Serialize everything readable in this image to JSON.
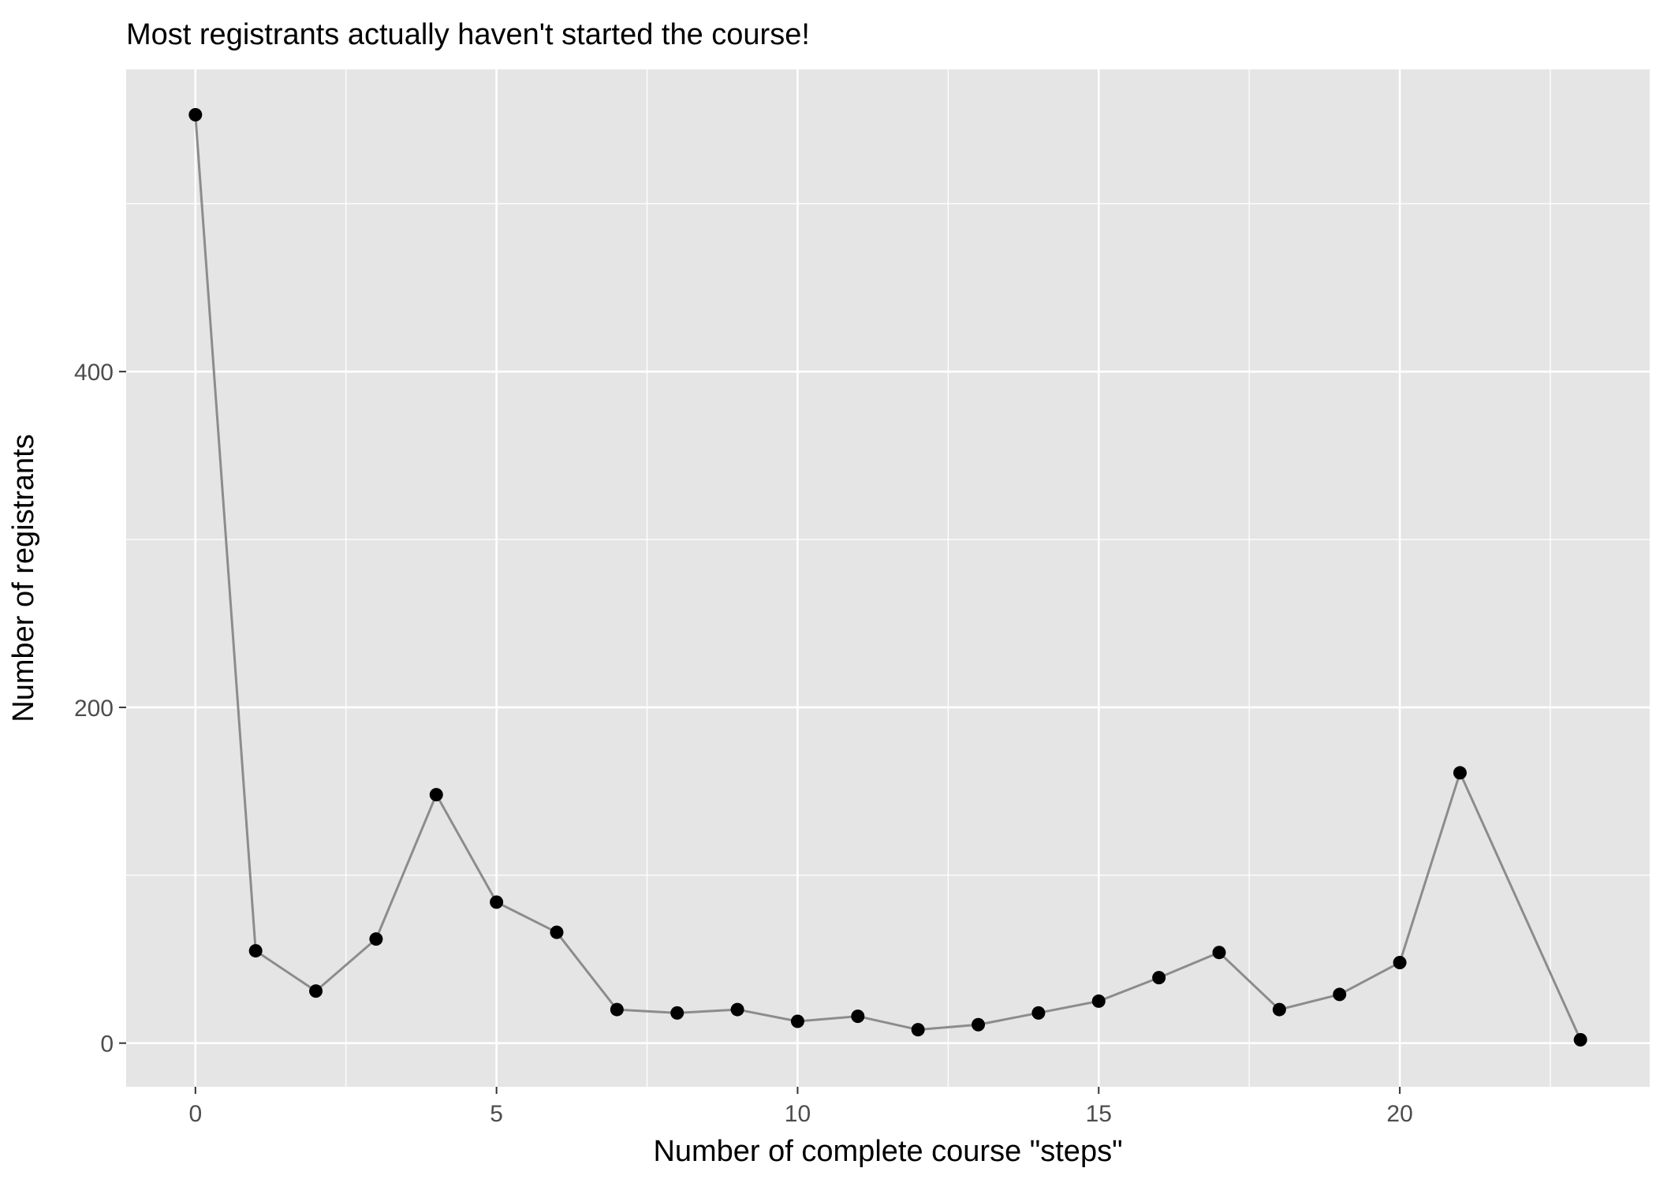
{
  "chart_data": {
    "type": "line",
    "title": "Most registrants actually haven't started the course!",
    "xlabel": "Number of complete course \"steps\"",
    "ylabel": "Number of registrants",
    "xlim": [
      -1.15,
      24.15
    ],
    "ylim": [
      -26,
      580
    ],
    "x_ticks": [
      0,
      5,
      10,
      15,
      20
    ],
    "x_tick_labels": [
      "0",
      "5",
      "10",
      "15",
      "20"
    ],
    "x_minor_ticks": [
      2.5,
      7.5,
      12.5,
      17.5,
      22.5
    ],
    "y_ticks": [
      0,
      200,
      400
    ],
    "y_tick_labels": [
      "0",
      "200",
      "400"
    ],
    "y_minor_ticks": [
      100,
      300,
      500
    ],
    "grid": true,
    "series": [
      {
        "x": [
          0,
          1,
          2,
          3,
          4,
          5,
          6,
          7,
          8,
          9,
          10,
          11,
          12,
          13,
          14,
          15,
          16,
          17,
          18,
          19,
          20,
          21,
          23
        ],
        "y": [
          553,
          55,
          31,
          62,
          148,
          84,
          66,
          20,
          18,
          20,
          13,
          16,
          8,
          11,
          18,
          25,
          39,
          54,
          20,
          29,
          48,
          161,
          2
        ]
      }
    ],
    "colors": {
      "panel_background": "#e5e5e5",
      "grid": "#ffffff",
      "line": "#8c8c8c",
      "point": "#000000"
    }
  }
}
